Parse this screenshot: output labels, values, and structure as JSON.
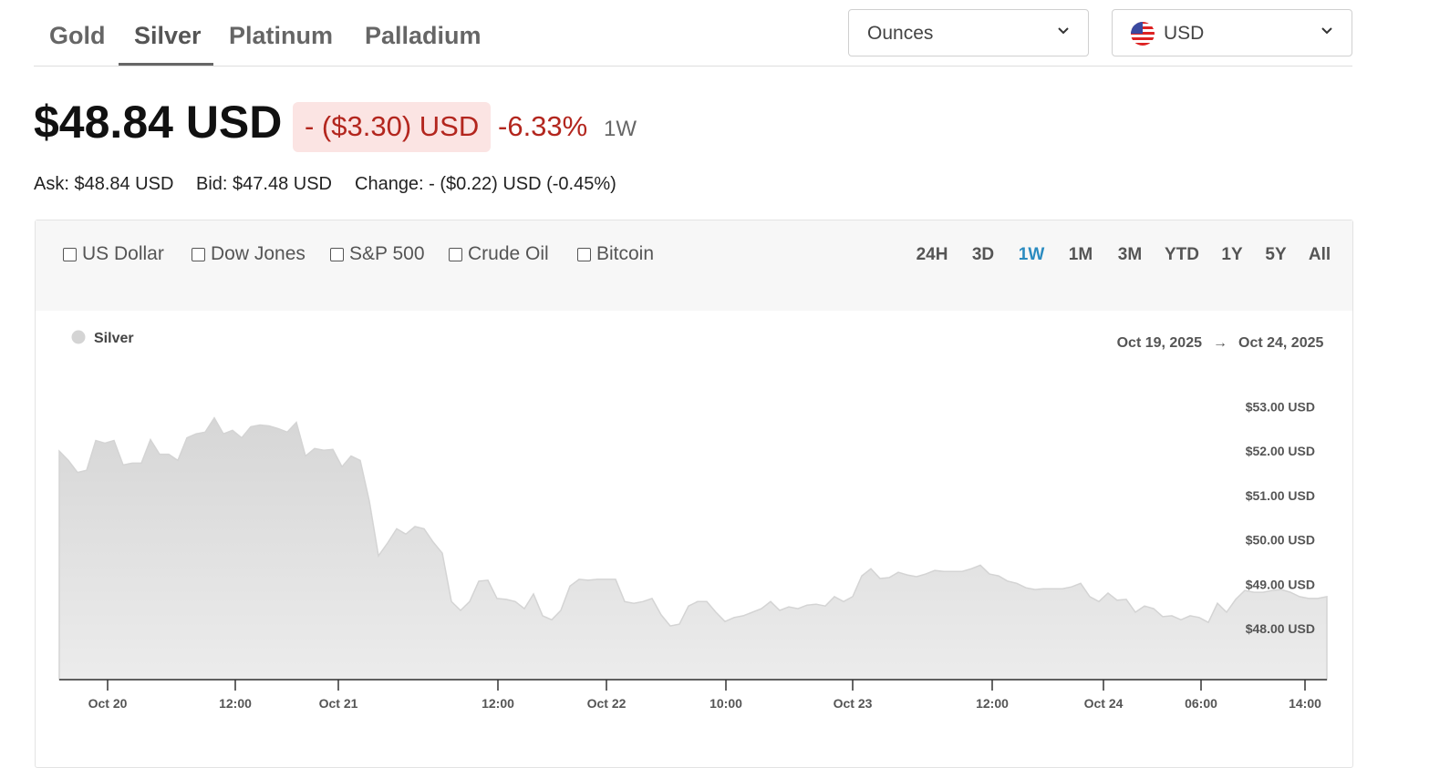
{
  "tabs": [
    "Gold",
    "Silver",
    "Platinum",
    "Palladium"
  ],
  "unit_select": "Ounces",
  "currency_select": "USD",
  "price": "$48.84 USD",
  "change": "- ($3.30) USD",
  "change_percent": "-6.33%",
  "period": "1W",
  "quote": {
    "ask": "Ask: $48.84 USD",
    "bid": "Bid: $47.48 USD",
    "change": "Change: - ($0.22) USD (-0.45%)"
  },
  "compare": [
    "US Dollar",
    "Dow Jones",
    "S&P 500",
    "Crude Oil",
    "Bitcoin"
  ],
  "ranges": [
    "24H",
    "3D",
    "1W",
    "1M",
    "3M",
    "YTD",
    "1Y",
    "5Y",
    "All"
  ],
  "chart_data": {
    "type": "area",
    "date_range": {
      "from": "Oct 19, 2025",
      "separator": "→",
      "to": "Oct 24, 2025"
    },
    "series": [
      {
        "name": "Silver",
        "color": "#d4d4d4",
        "values": [
          52.0,
          51.79,
          51.52,
          51.57,
          52.24,
          52.18,
          52.24,
          51.69,
          51.73,
          51.73,
          52.26,
          51.93,
          51.93,
          51.79,
          52.3,
          52.39,
          52.43,
          52.75,
          52.39,
          52.47,
          52.3,
          52.55,
          52.59,
          52.57,
          52.51,
          52.43,
          52.65,
          51.89,
          52.06,
          52.02,
          52.04,
          51.65,
          51.89,
          51.79,
          50.87,
          49.64,
          49.93,
          50.25,
          50.13,
          50.3,
          50.25,
          49.95,
          49.7,
          48.61,
          48.41,
          48.61,
          49.07,
          49.09,
          48.68,
          48.66,
          48.61,
          48.45,
          48.78,
          48.29,
          48.2,
          48.41,
          48.96,
          49.11,
          49.09,
          49.11,
          49.11,
          49.11,
          48.61,
          48.57,
          48.61,
          48.68,
          48.31,
          48.06,
          48.1,
          48.51,
          48.61,
          48.61,
          48.37,
          48.16,
          48.25,
          48.29,
          48.37,
          48.45,
          48.61,
          48.41,
          48.49,
          48.45,
          48.53,
          48.55,
          48.51,
          48.72,
          48.61,
          48.72,
          49.19,
          49.35,
          49.13,
          49.15,
          49.27,
          49.21,
          49.17,
          49.23,
          49.31,
          49.29,
          49.29,
          49.29,
          49.35,
          49.43,
          49.23,
          49.19,
          49.07,
          49.02,
          48.92,
          48.88,
          48.9,
          48.9,
          48.9,
          48.94,
          49.02,
          48.72,
          48.61,
          48.8,
          48.64,
          48.66,
          48.37,
          48.51,
          48.45,
          48.27,
          48.29,
          48.2,
          48.29,
          48.25,
          48.14,
          48.57,
          48.37,
          48.66,
          48.86,
          48.82,
          48.82,
          48.86,
          48.88,
          48.82,
          48.72,
          48.68,
          48.68,
          48.72
        ]
      }
    ],
    "xlim": [
      0,
      139
    ],
    "xticks": [
      {
        "value": 5.3,
        "label": "Oct 20"
      },
      {
        "value": 19.3,
        "label": "12:00"
      },
      {
        "value": 30.6,
        "label": "Oct 21"
      },
      {
        "value": 48.1,
        "label": "12:00"
      },
      {
        "value": 60,
        "label": "Oct 22"
      },
      {
        "value": 73.1,
        "label": "10:00"
      },
      {
        "value": 87,
        "label": "Oct 23"
      },
      {
        "value": 102.3,
        "label": "12:00"
      },
      {
        "value": 114.5,
        "label": "Oct 24"
      },
      {
        "value": 125.2,
        "label": "06:00"
      },
      {
        "value": 136.6,
        "label": "14:00"
      }
    ],
    "ylim": [
      46.85,
      53.75
    ],
    "yticks": [
      {
        "value": 48,
        "label": "$48.00 USD"
      },
      {
        "value": 49,
        "label": "$49.00 USD"
      },
      {
        "value": 50,
        "label": "$50.00 USD"
      },
      {
        "value": 51,
        "label": "$51.00 USD"
      },
      {
        "value": 52,
        "label": "$52.00 USD"
      },
      {
        "value": 53,
        "label": "$53.00 USD"
      }
    ]
  }
}
